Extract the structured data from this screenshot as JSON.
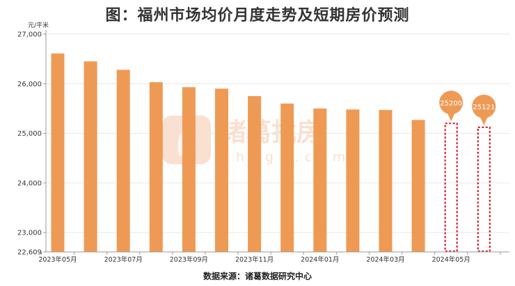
{
  "title": "图：福州市场均价月度走势及短期房价预测",
  "source": "数据来源：诸葛数据研究中心",
  "watermark": {
    "brand": "诸葛找房",
    "domain": "zhuge.com"
  },
  "colors": {
    "bar": "#EE9A55",
    "forecast_border": "#D9212C",
    "bubble": "#EE9A55",
    "axis": "#999999",
    "grid": "#E6E6E6",
    "text": "#333333"
  },
  "chart_data": {
    "type": "bar",
    "ylabel": "元/平米",
    "ylim": [
      22609,
      27000
    ],
    "yticks": [
      22609,
      23000,
      24000,
      25000,
      26000,
      27000
    ],
    "ytick_labels": [
      "22,609",
      "23,000",
      "24,000",
      "25,000",
      "26,000",
      "27,000"
    ],
    "xtick_labels": [
      "2023年05月",
      "2023年07月",
      "2023年09月",
      "2023年11月",
      "2024年01月",
      "2024年03月",
      "2024年05月"
    ],
    "xtick_positions": [
      0,
      2,
      4,
      6,
      8,
      10,
      12
    ],
    "categories": [
      "2023-05",
      "2023-06",
      "2023-07",
      "2023-08",
      "2023-09",
      "2023-10",
      "2023-11",
      "2023-12",
      "2024-01",
      "2024-02",
      "2024-03",
      "2024-04",
      "2024-05",
      "2024-06"
    ],
    "values": [
      26610,
      26450,
      26280,
      26030,
      25930,
      25900,
      25750,
      25600,
      25500,
      25480,
      25470,
      25270,
      null,
      null
    ],
    "forecast": [
      {
        "index": 12,
        "value": 25200,
        "label": "25200"
      },
      {
        "index": 13,
        "value": 25121,
        "label": "25121"
      }
    ]
  }
}
